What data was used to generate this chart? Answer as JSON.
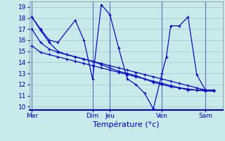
{
  "background_color": "#c8eaea",
  "grid_color": "#a0d0d0",
  "line_color": "#0000cc",
  "xlabel": "Température (°c)",
  "xlabel_color": "#0000cc",
  "tick_label_color": "#0000bb",
  "ylim": [
    9.7,
    19.5
  ],
  "yticks": [
    10,
    11,
    12,
    13,
    14,
    15,
    16,
    17,
    18,
    19
  ],
  "day_labels": [
    "Mer",
    "Dim",
    "Jeu",
    "Ven",
    "Sam"
  ],
  "day_x": [
    0,
    7,
    9,
    15,
    20
  ],
  "xlim": [
    -0.3,
    22
  ],
  "series_x": [
    [
      0,
      1,
      2,
      3,
      4,
      5,
      6,
      7,
      8,
      9,
      10,
      11,
      12,
      13,
      14,
      15,
      16,
      17,
      18,
      19,
      20,
      21
    ],
    [
      0,
      1,
      2,
      3,
      4,
      5,
      6,
      7,
      8,
      9,
      10,
      11,
      12,
      13,
      14,
      15,
      16,
      17,
      18,
      19,
      20,
      21
    ],
    [
      0,
      1,
      2,
      3,
      4,
      5,
      6,
      7,
      8,
      9,
      10,
      11,
      12,
      13,
      14,
      15,
      16,
      17,
      18,
      19,
      20,
      21
    ],
    [
      0,
      1,
      2,
      3,
      5,
      6,
      7,
      8,
      9,
      10,
      11,
      12,
      13,
      14,
      15,
      15.5,
      16,
      17,
      18,
      19,
      20,
      21
    ]
  ],
  "series_y": [
    [
      18.1,
      16.9,
      15.8,
      15.0,
      14.7,
      14.5,
      14.3,
      14.1,
      13.8,
      13.5,
      13.2,
      13.0,
      12.8,
      12.5,
      12.2,
      12.0,
      11.8,
      11.7,
      11.6,
      11.5,
      11.4,
      11.4
    ],
    [
      17.0,
      15.8,
      15.2,
      14.9,
      14.7,
      14.5,
      14.3,
      14.1,
      13.9,
      13.7,
      13.5,
      13.3,
      13.1,
      12.9,
      12.7,
      12.5,
      12.3,
      12.1,
      11.9,
      11.7,
      11.5,
      11.5
    ],
    [
      15.5,
      14.9,
      14.7,
      14.5,
      14.3,
      14.1,
      13.9,
      13.7,
      13.5,
      13.3,
      13.1,
      12.9,
      12.7,
      12.5,
      12.3,
      12.1,
      11.9,
      11.7,
      11.5,
      11.5,
      11.5,
      11.5
    ],
    [
      18.1,
      17.0,
      16.0,
      15.8,
      17.8,
      16.0,
      12.5,
      19.2,
      18.3,
      15.3,
      12.5,
      12.0,
      11.2,
      9.8,
      13.0,
      14.5,
      17.3,
      17.3,
      18.1,
      12.9,
      11.5,
      11.5
    ]
  ]
}
